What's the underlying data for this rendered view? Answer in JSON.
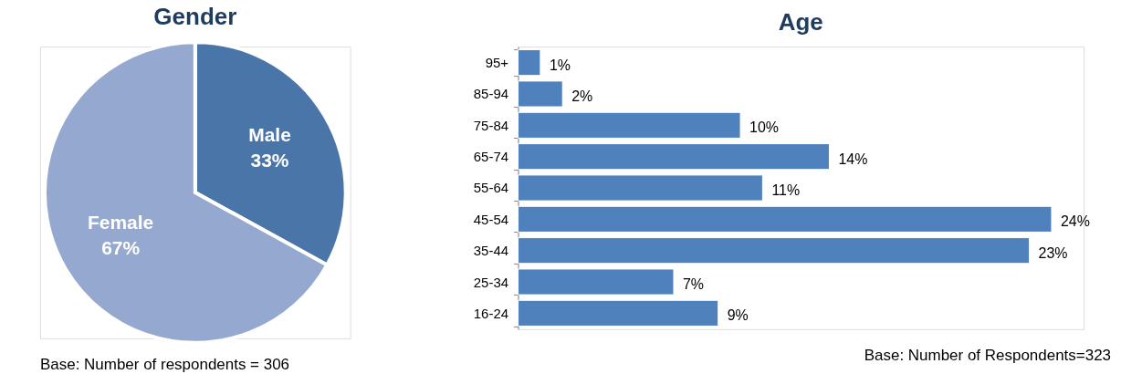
{
  "chart_data": [
    {
      "type": "pie",
      "title": "Gender",
      "categories": [
        "Male",
        "Female"
      ],
      "values": [
        33,
        67
      ],
      "colors": [
        "#4a75a8",
        "#95a9d0"
      ],
      "value_labels": [
        "33%",
        "67%"
      ],
      "annotations": [
        "Base: Number of respondents = 306"
      ]
    },
    {
      "type": "bar",
      "orientation": "horizontal",
      "title": "Age",
      "categories": [
        "95+",
        "85-94",
        "75-84",
        "65-74",
        "55-64",
        "45-54",
        "35-44",
        "25-34",
        "16-24"
      ],
      "values": [
        1,
        2,
        10,
        14,
        11,
        24,
        23,
        7,
        9
      ],
      "color": "#4f81bd",
      "value_labels": [
        "1%",
        "2%",
        "10%",
        "14%",
        "11%",
        "24%",
        "23%",
        "7%",
        "9%"
      ],
      "annotations": [
        "Base: Number of Respondents=323"
      ]
    }
  ]
}
